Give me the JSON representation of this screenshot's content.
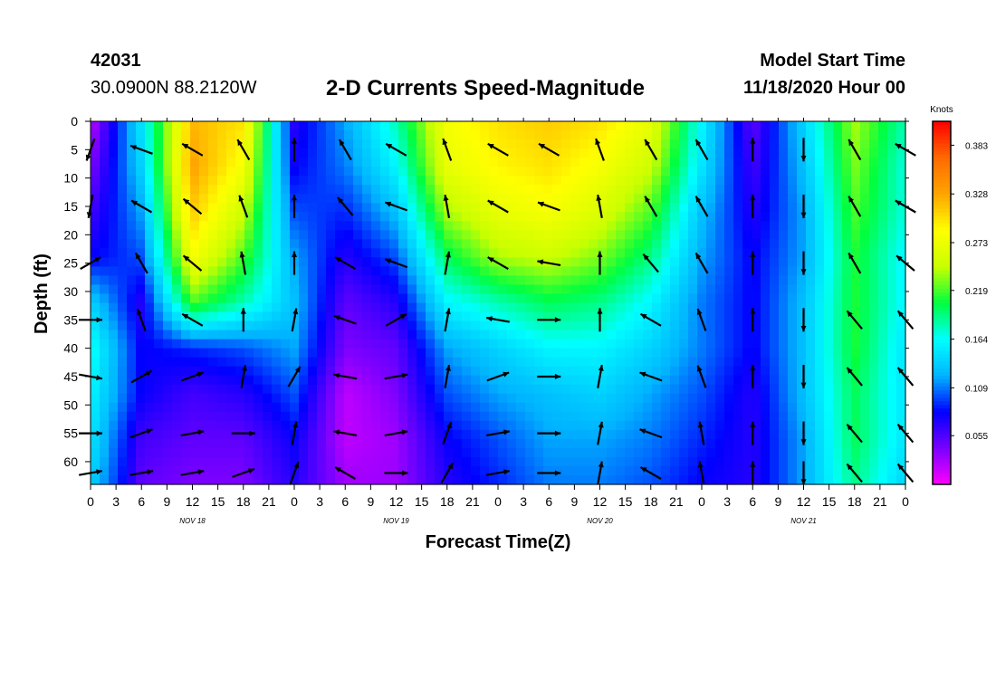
{
  "header": {
    "station_id": "42031",
    "station_location": "30.0900N 88.2120W",
    "title": "2-D Currents Speed-Magnitude",
    "start_label": "Model Start Time",
    "start_value": "11/18/2020 Hour 00"
  },
  "chart_data": {
    "type": "heatmap",
    "title": "2-D Currents Speed-Magnitude",
    "xlabel": "Forecast Time(Z)",
    "ylabel": "Depth (ft)",
    "x_tick_labels": [
      "0",
      "3",
      "6",
      "9",
      "12",
      "15",
      "18",
      "21",
      "0",
      "3",
      "6",
      "9",
      "12",
      "15",
      "18",
      "21",
      "0",
      "3",
      "6",
      "9",
      "12",
      "15",
      "18",
      "21",
      "0",
      "3",
      "6",
      "9",
      "12",
      "15",
      "18",
      "21",
      "0"
    ],
    "x_range_hours": [
      0,
      96
    ],
    "day_labels": [
      {
        "label": "NOV 18",
        "hour": 12
      },
      {
        "label": "NOV 19",
        "hour": 36
      },
      {
        "label": "NOV 20",
        "hour": 60
      },
      {
        "label": "NOV 21",
        "hour": 84
      }
    ],
    "y_ticks": [
      0,
      5,
      10,
      15,
      20,
      25,
      30,
      35,
      40,
      45,
      50,
      55,
      60
    ],
    "y_range": [
      0,
      64
    ],
    "y_inverted": true,
    "colorbar": {
      "title": "Knots",
      "min": 0.0,
      "max": 0.41,
      "tick_labels": [
        "0.383",
        "0.328",
        "0.273",
        "0.219",
        "0.164",
        "0.109",
        "0.055"
      ],
      "tick_values": [
        0.383,
        0.328,
        0.273,
        0.219,
        0.164,
        0.109,
        0.055
      ],
      "colormap": [
        "#ff00ff",
        "#7a00ff",
        "#0000ff",
        "#00b4ff",
        "#00ffff",
        "#00ff40",
        "#c8ff00",
        "#ffff00",
        "#ffa500",
        "#ff6a00",
        "#ff0000"
      ]
    },
    "depths_ft": [
      0,
      8,
      16,
      24,
      32,
      40,
      48,
      56,
      64
    ],
    "hours": [
      0,
      6,
      12,
      18,
      24,
      30,
      36,
      42,
      48,
      54,
      60,
      66,
      72,
      78,
      84,
      90,
      96
    ],
    "speed_knots": [
      [
        0.02,
        0.15,
        0.32,
        0.3,
        0.07,
        0.12,
        0.18,
        0.28,
        0.3,
        0.31,
        0.3,
        0.27,
        0.16,
        0.05,
        0.14,
        0.24,
        0.18
      ],
      [
        0.04,
        0.14,
        0.33,
        0.28,
        0.08,
        0.11,
        0.16,
        0.27,
        0.29,
        0.3,
        0.28,
        0.25,
        0.15,
        0.06,
        0.13,
        0.23,
        0.17
      ],
      [
        0.06,
        0.12,
        0.31,
        0.25,
        0.1,
        0.09,
        0.13,
        0.24,
        0.27,
        0.28,
        0.26,
        0.22,
        0.13,
        0.07,
        0.12,
        0.22,
        0.17
      ],
      [
        0.08,
        0.1,
        0.28,
        0.22,
        0.12,
        0.07,
        0.1,
        0.2,
        0.24,
        0.25,
        0.23,
        0.19,
        0.12,
        0.08,
        0.12,
        0.21,
        0.16
      ],
      [
        0.14,
        0.07,
        0.22,
        0.18,
        0.13,
        0.05,
        0.07,
        0.16,
        0.18,
        0.2,
        0.19,
        0.16,
        0.11,
        0.08,
        0.13,
        0.21,
        0.16
      ],
      [
        0.17,
        0.08,
        0.09,
        0.1,
        0.12,
        0.04,
        0.05,
        0.12,
        0.14,
        0.16,
        0.16,
        0.14,
        0.11,
        0.08,
        0.13,
        0.21,
        0.15
      ],
      [
        0.16,
        0.08,
        0.06,
        0.07,
        0.1,
        0.02,
        0.04,
        0.1,
        0.12,
        0.13,
        0.14,
        0.12,
        0.1,
        0.07,
        0.13,
        0.2,
        0.15
      ],
      [
        0.15,
        0.06,
        0.05,
        0.05,
        0.08,
        0.02,
        0.03,
        0.08,
        0.1,
        0.12,
        0.12,
        0.11,
        0.09,
        0.07,
        0.12,
        0.2,
        0.15
      ],
      [
        0.14,
        0.05,
        0.04,
        0.04,
        0.07,
        0.03,
        0.03,
        0.07,
        0.09,
        0.11,
        0.11,
        0.1,
        0.08,
        0.07,
        0.12,
        0.19,
        0.14
      ]
    ],
    "vectors": {
      "hours": [
        0,
        6,
        12,
        18,
        24,
        30,
        36,
        42,
        48,
        54,
        60,
        66,
        72,
        78,
        84,
        90,
        96
      ],
      "depths_ft": [
        5,
        15,
        25,
        35,
        45,
        55,
        62
      ],
      "direction_deg": [
        [
          200,
          290,
          300,
          330,
          0,
          330,
          300,
          340,
          300,
          300,
          340,
          330,
          330,
          0,
          180,
          330,
          300
        ],
        [
          190,
          300,
          310,
          340,
          0,
          320,
          290,
          350,
          300,
          290,
          350,
          330,
          330,
          0,
          180,
          330,
          300
        ],
        [
          60,
          330,
          310,
          350,
          0,
          300,
          290,
          10,
          300,
          280,
          0,
          320,
          330,
          0,
          180,
          330,
          310
        ],
        [
          90,
          340,
          300,
          0,
          10,
          290,
          60,
          10,
          280,
          90,
          0,
          300,
          340,
          0,
          180,
          320,
          320
        ],
        [
          100,
          60,
          70,
          10,
          30,
          280,
          80,
          10,
          70,
          90,
          10,
          290,
          340,
          0,
          180,
          320,
          320
        ],
        [
          90,
          70,
          80,
          90,
          10,
          280,
          80,
          20,
          80,
          90,
          10,
          290,
          350,
          0,
          180,
          320,
          320
        ],
        [
          80,
          80,
          80,
          70,
          20,
          300,
          90,
          30,
          80,
          90,
          10,
          300,
          350,
          0,
          180,
          320,
          320
        ]
      ]
    }
  }
}
